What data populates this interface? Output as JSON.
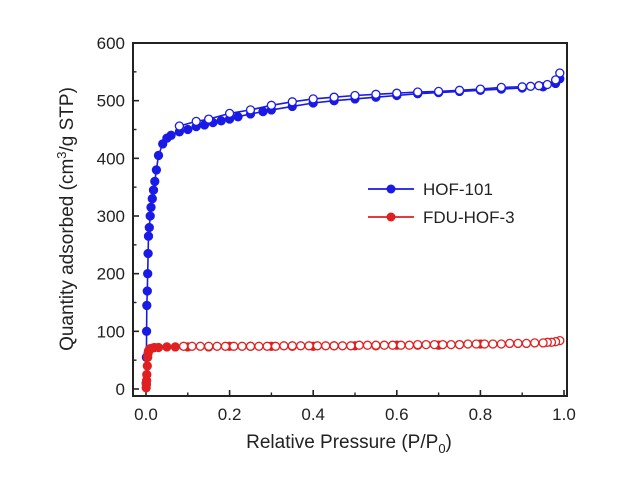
{
  "chart_data": {
    "type": "scatter",
    "title": "",
    "xlabel": "Relative Pressure (P/P",
    "xlabel_sub": "0",
    "xlabel_tail": ")",
    "ylabel": "Quantity adsorbed (cm",
    "ylabel_sup": "3",
    "ylabel_tail": "/g STP)",
    "xlim": [
      0.0,
      1.0
    ],
    "ylim": [
      0,
      600
    ],
    "xticks": [
      "0.0",
      "0.2",
      "0.4",
      "0.6",
      "0.8",
      "1.0"
    ],
    "yticks": [
      "0",
      "100",
      "200",
      "300",
      "400",
      "500",
      "600"
    ],
    "legend_position": "right-middle",
    "grid": false,
    "series": [
      {
        "name": "HOF-101",
        "color": "#1a1ae6",
        "adsorption": {
          "x": [
            0.0005,
            0.001,
            0.0015,
            0.002,
            0.003,
            0.004,
            0.005,
            0.006,
            0.008,
            0.01,
            0.012,
            0.015,
            0.018,
            0.021,
            0.025,
            0.03,
            0.04,
            0.05,
            0.06,
            0.08,
            0.1,
            0.12,
            0.14,
            0.16,
            0.18,
            0.2,
            0.22,
            0.25,
            0.28,
            0.3,
            0.35,
            0.4,
            0.45,
            0.5,
            0.55,
            0.6,
            0.65,
            0.7,
            0.75,
            0.8,
            0.85,
            0.9,
            0.95,
            0.98,
            0.99
          ],
          "y": [
            10,
            55,
            100,
            145,
            170,
            200,
            235,
            265,
            280,
            300,
            315,
            330,
            345,
            360,
            380,
            405,
            425,
            435,
            440,
            446,
            450,
            455,
            458,
            462,
            465,
            468,
            472,
            477,
            481,
            484,
            490,
            496,
            500,
            503,
            506,
            509,
            512,
            514,
            516,
            518,
            520,
            522,
            524,
            530,
            538
          ]
        },
        "desorption": {
          "x": [
            0.99,
            0.98,
            0.96,
            0.94,
            0.92,
            0.9,
            0.85,
            0.8,
            0.75,
            0.7,
            0.65,
            0.6,
            0.55,
            0.5,
            0.45,
            0.4,
            0.35,
            0.3,
            0.25,
            0.2,
            0.15,
            0.12,
            0.08
          ],
          "y": [
            548,
            536,
            528,
            526,
            525,
            524,
            523,
            520,
            518,
            516,
            515,
            513,
            511,
            509,
            506,
            503,
            498,
            492,
            484,
            478,
            468,
            464,
            456
          ]
        }
      },
      {
        "name": "FDU-HOF-3",
        "color": "#e02020",
        "adsorption": {
          "x": [
            0.0005,
            0.001,
            0.0015,
            0.002,
            0.003,
            0.004,
            0.005,
            0.006,
            0.008,
            0.01,
            0.015,
            0.02,
            0.03,
            0.05,
            0.07,
            0.1,
            0.15,
            0.2,
            0.25,
            0.3,
            0.35,
            0.4,
            0.45,
            0.5,
            0.55,
            0.6,
            0.65,
            0.7,
            0.75,
            0.8
          ],
          "y": [
            2,
            8,
            15,
            25,
            40,
            55,
            62,
            66,
            68,
            70,
            71,
            72,
            72,
            73,
            73,
            73,
            73,
            74,
            74,
            74,
            74,
            74,
            75,
            75,
            75,
            76,
            76,
            76,
            77,
            78
          ]
        },
        "desorption": {
          "x": [
            0.99,
            0.98,
            0.97,
            0.96,
            0.95,
            0.93,
            0.91,
            0.89,
            0.87,
            0.85,
            0.83,
            0.81,
            0.79,
            0.77,
            0.75,
            0.73,
            0.71,
            0.69,
            0.67,
            0.65,
            0.63,
            0.61,
            0.59,
            0.57,
            0.55,
            0.53,
            0.51,
            0.49,
            0.47,
            0.45,
            0.43,
            0.41,
            0.39,
            0.37,
            0.35,
            0.33,
            0.31,
            0.29,
            0.27,
            0.25,
            0.23,
            0.21,
            0.19,
            0.17,
            0.15,
            0.13,
            0.11,
            0.09
          ],
          "y": [
            84,
            82,
            81,
            81,
            80,
            80,
            79,
            79,
            79,
            78,
            78,
            78,
            78,
            78,
            77,
            77,
            77,
            77,
            77,
            77,
            76,
            76,
            76,
            76,
            76,
            76,
            76,
            75,
            75,
            75,
            75,
            75,
            75,
            75,
            75,
            75,
            74,
            74,
            74,
            74,
            74,
            74,
            74,
            74,
            74,
            74,
            74,
            74
          ]
        }
      }
    ]
  }
}
